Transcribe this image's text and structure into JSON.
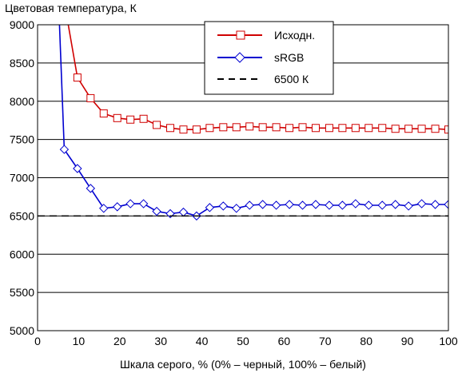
{
  "chart_data": {
    "type": "line",
    "title": "",
    "ylabel": "Цветовая температура, К",
    "xlabel": "Шкала серого, % (0% – черный, 100% – белый)",
    "xlim": [
      0,
      100
    ],
    "ylim": [
      5000,
      9000
    ],
    "xticks": [
      0,
      10,
      20,
      30,
      40,
      50,
      60,
      70,
      80,
      90,
      100
    ],
    "yticks": [
      5000,
      5500,
      6000,
      6500,
      7000,
      7500,
      8000,
      8500,
      9000
    ],
    "grid": "horizontal",
    "legend_position": "top-right",
    "series": [
      {
        "name": "Исходн.",
        "color": "#d00000",
        "marker": "square",
        "points": [
          [
            6.5,
            9300
          ],
          [
            9.7,
            8310
          ],
          [
            12.9,
            8040
          ],
          [
            16.1,
            7840
          ],
          [
            19.4,
            7780
          ],
          [
            22.6,
            7760
          ],
          [
            25.8,
            7770
          ],
          [
            29.0,
            7690
          ],
          [
            32.3,
            7650
          ],
          [
            35.5,
            7630
          ],
          [
            38.7,
            7630
          ],
          [
            41.9,
            7650
          ],
          [
            45.2,
            7660
          ],
          [
            48.4,
            7660
          ],
          [
            51.6,
            7670
          ],
          [
            54.8,
            7660
          ],
          [
            58.1,
            7660
          ],
          [
            61.3,
            7650
          ],
          [
            64.5,
            7660
          ],
          [
            67.7,
            7650
          ],
          [
            71.0,
            7650
          ],
          [
            74.2,
            7650
          ],
          [
            77.4,
            7650
          ],
          [
            80.6,
            7650
          ],
          [
            83.9,
            7650
          ],
          [
            87.1,
            7640
          ],
          [
            90.3,
            7640
          ],
          [
            93.5,
            7640
          ],
          [
            96.8,
            7640
          ],
          [
            100,
            7630
          ]
        ]
      },
      {
        "name": "sRGB",
        "color": "#0000d0",
        "marker": "diamond",
        "points": [
          [
            3.2,
            12000
          ],
          [
            6.5,
            7370
          ],
          [
            9.7,
            7120
          ],
          [
            12.9,
            6860
          ],
          [
            16.1,
            6600
          ],
          [
            19.4,
            6620
          ],
          [
            22.6,
            6660
          ],
          [
            25.8,
            6660
          ],
          [
            29.0,
            6560
          ],
          [
            32.3,
            6530
          ],
          [
            35.5,
            6550
          ],
          [
            38.7,
            6500
          ],
          [
            41.9,
            6610
          ],
          [
            45.2,
            6630
          ],
          [
            48.4,
            6600
          ],
          [
            51.6,
            6640
          ],
          [
            54.8,
            6650
          ],
          [
            58.1,
            6640
          ],
          [
            61.3,
            6650
          ],
          [
            64.5,
            6640
          ],
          [
            67.7,
            6650
          ],
          [
            71.0,
            6640
          ],
          [
            74.2,
            6640
          ],
          [
            77.4,
            6660
          ],
          [
            80.6,
            6640
          ],
          [
            83.9,
            6640
          ],
          [
            87.1,
            6650
          ],
          [
            90.3,
            6630
          ],
          [
            93.5,
            6660
          ],
          [
            96.8,
            6650
          ],
          [
            100,
            6650
          ]
        ]
      },
      {
        "name": "6500 К",
        "color": "#000000",
        "style": "dashed",
        "points": [
          [
            0,
            6500
          ],
          [
            100,
            6500
          ]
        ]
      }
    ]
  }
}
